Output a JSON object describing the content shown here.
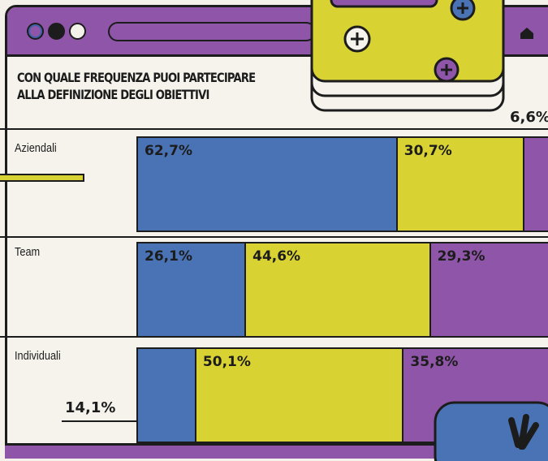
{
  "title_lines": [
    "CON QUALE FREQUENZA PUOI PARTECIPARE",
    "ALLA DEFINIZIONE DEGLI OBIETTIVI"
  ],
  "colors": {
    "blue": "#4a73b5",
    "yellow": "#d8d233",
    "purple": "#8f55a8"
  },
  "icons": [
    "plus-icon",
    "home-icon"
  ],
  "chart_data": {
    "type": "bar",
    "orientation": "horizontal",
    "stacked": true,
    "categories": [
      "Aziendali",
      "Team",
      "Individuali"
    ],
    "series": [
      {
        "values": [
          62.7,
          26.1,
          14.1
        ],
        "labels": [
          "62,7%",
          "26,1%",
          "14,1%"
        ]
      },
      {
        "values": [
          30.7,
          44.6,
          50.1
        ],
        "labels": [
          "30,7%",
          "44,6%",
          "50,1%"
        ]
      },
      {
        "values": [
          6.6,
          29.3,
          35.8
        ],
        "labels": [
          "6,6%",
          "29,3%",
          "35,8%"
        ]
      }
    ],
    "xlim": [
      0,
      100
    ],
    "legend": "none",
    "grid": false
  }
}
